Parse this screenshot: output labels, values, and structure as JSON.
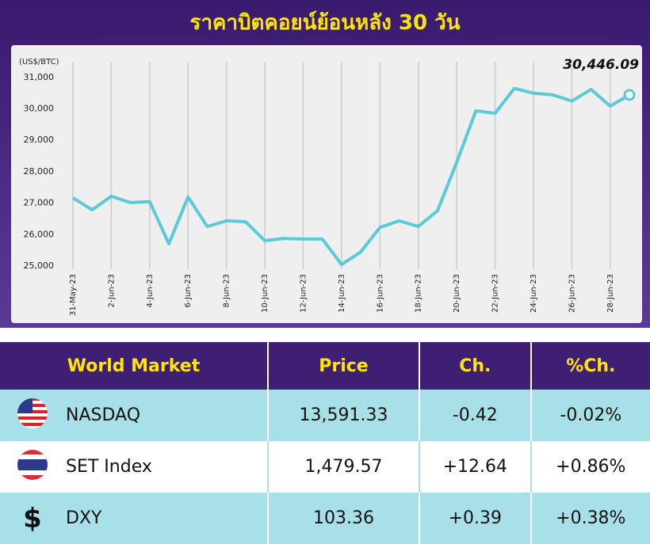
{
  "chart_data": {
    "type": "line",
    "title": "ราคาบิตคอยน์ย้อนหลัง 30 วัน",
    "y_label": "(US$/BTC)",
    "categories": [
      "31-May-23",
      null,
      "2-Jun-23",
      null,
      "4-Jun-23",
      null,
      "6-Jun-23",
      null,
      "8-Jun-23",
      null,
      "10-Jun-23",
      null,
      "12-Jun-23",
      null,
      "14-Jun-23",
      null,
      "16-Jun-23",
      null,
      "18-Jun-23",
      null,
      "20-Jun-23",
      null,
      "22-Jun-23",
      null,
      "24-Jun-23",
      null,
      "26-Jun-23",
      null,
      "28-Jun-23",
      null
    ],
    "values": [
      27170,
      26790,
      27220,
      27020,
      27050,
      25710,
      27200,
      26260,
      26440,
      26410,
      25810,
      25880,
      25860,
      25860,
      25050,
      25450,
      26230,
      26440,
      26260,
      26760,
      28300,
      29940,
      29860,
      30650,
      30500,
      30450,
      30250,
      30620,
      30090,
      30446.09
    ],
    "value_labels": [
      null,
      null,
      null,
      null,
      null,
      null,
      null,
      null,
      null,
      null,
      null,
      null,
      null,
      null,
      null,
      null,
      null,
      null,
      null,
      null,
      null,
      null,
      null,
      null,
      null,
      null,
      null,
      null,
      null,
      "30,446.09"
    ],
    "color": "#5cc9d9",
    "ylim": [
      24900,
      31500
    ],
    "yticks": [
      {
        "value": 25000,
        "label": "25,000"
      },
      {
        "value": 26000,
        "label": "26,000"
      },
      {
        "value": 27000,
        "label": "27,000"
      },
      {
        "value": 28000,
        "label": "28,000"
      },
      {
        "value": 29000,
        "label": "29,000"
      },
      {
        "value": 30000,
        "label": "30,000"
      },
      {
        "value": 31000,
        "label": "31,000"
      }
    ],
    "grid": "x"
  },
  "table": {
    "header": [
      "World Market",
      "Price",
      "Ch.",
      "%Ch."
    ],
    "rows": [
      {
        "name": "NASDAQ",
        "price": "13,591.33",
        "change": "-0.42",
        "pct_change": "-0.02%"
      },
      {
        "name": "SET Index",
        "price": "1,479.57",
        "change": "+12.64",
        "pct_change": "+0.86%"
      },
      {
        "icon": "$",
        "name": "DXY",
        "price": "103.36",
        "change": "+0.39",
        "pct_change": "+0.38%"
      }
    ]
  }
}
